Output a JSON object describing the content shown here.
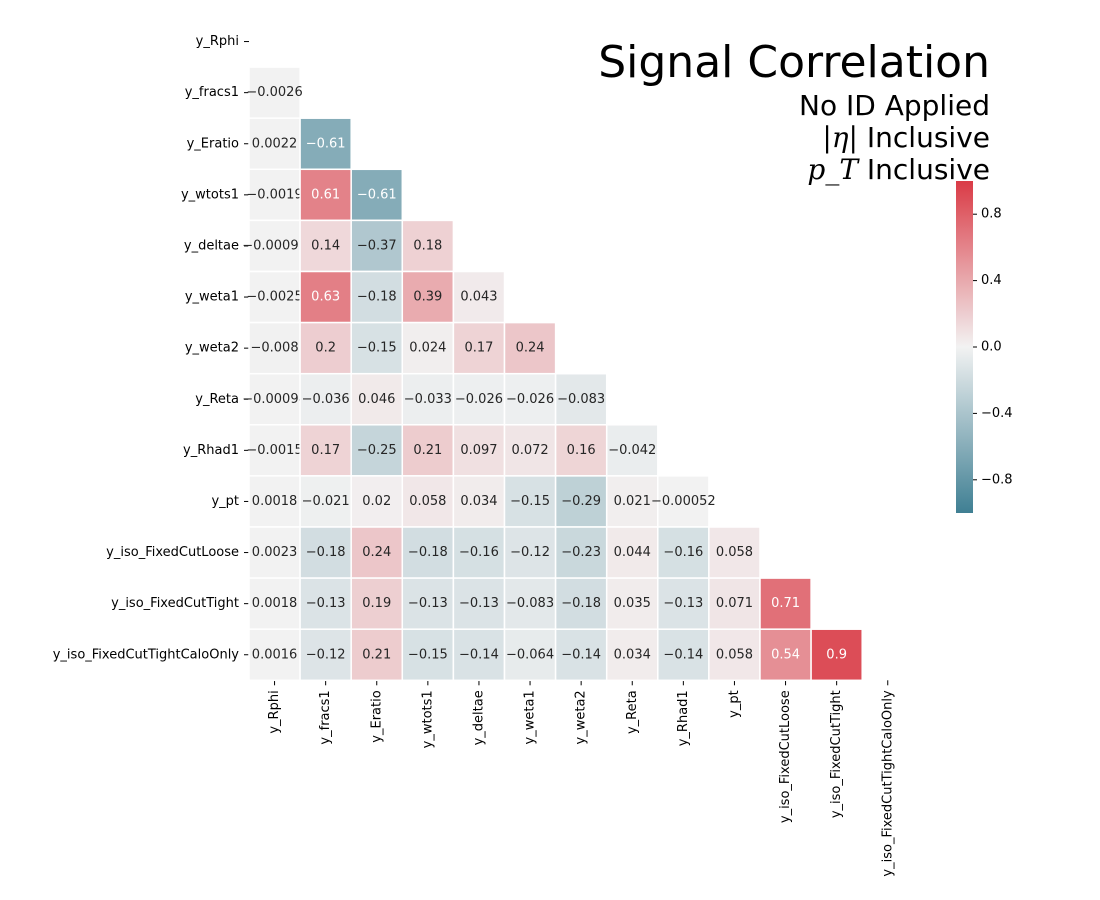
{
  "chart_data": {
    "type": "heatmap",
    "title": "Signal Correlation",
    "subtitle_lines": [
      "No ID Applied",
      "Inclusive",
      "Inclusive"
    ],
    "subtitle_symbols": [
      "|η|",
      "p_T"
    ],
    "row_labels": [
      "y_Rphi",
      "y_fracs1",
      "y_Eratio",
      "y_wtots1",
      "y_deltae",
      "y_weta1",
      "y_weta2",
      "y_Reta",
      "y_Rhad1",
      "y_pt",
      "y_iso_FixedCutLoose",
      "y_iso_FixedCutTight",
      "y_iso_FixedCutTightCaloOnly"
    ],
    "col_labels": [
      "y_Rphi",
      "y_fracs1",
      "y_Eratio",
      "y_wtots1",
      "y_deltae",
      "y_weta1",
      "y_weta2",
      "y_Reta",
      "y_Rhad1",
      "y_pt",
      "y_iso_FixedCutLoose",
      "y_iso_FixedCutTight",
      "y_iso_FixedCutTightCaloOnly"
    ],
    "values": [
      [],
      [
        -0.0026
      ],
      [
        0.0022,
        -0.61
      ],
      [
        -0.0019,
        0.61,
        -0.61
      ],
      [
        -0.00092,
        0.14,
        -0.37,
        0.18
      ],
      [
        -0.0025,
        0.63,
        -0.18,
        0.39,
        0.043
      ],
      [
        -0.008,
        0.2,
        -0.15,
        0.024,
        0.17,
        0.24
      ],
      [
        -0.00094,
        -0.036,
        0.046,
        -0.033,
        -0.026,
        -0.026,
        -0.083
      ],
      [
        -0.0015,
        0.17,
        -0.25,
        0.21,
        0.097,
        0.072,
        0.16,
        -0.042
      ],
      [
        0.0018,
        -0.021,
        0.02,
        0.058,
        0.034,
        -0.15,
        -0.29,
        0.021,
        -0.00052
      ],
      [
        0.0023,
        -0.18,
        0.24,
        -0.18,
        -0.16,
        -0.12,
        -0.23,
        0.044,
        -0.16,
        0.058
      ],
      [
        0.0018,
        -0.13,
        0.19,
        -0.13,
        -0.13,
        -0.083,
        -0.18,
        0.035,
        -0.13,
        0.071,
        0.71
      ],
      [
        0.0016,
        -0.12,
        0.21,
        -0.15,
        -0.14,
        -0.064,
        -0.14,
        0.034,
        -0.14,
        0.058,
        0.54,
        0.9
      ]
    ],
    "colorbar": {
      "vmin": -1,
      "vmax": 1,
      "ticks": [
        0.8,
        0.4,
        0.0,
        -0.4,
        -0.8
      ],
      "tick_labels": [
        "0.8",
        "0.4",
        "0.0",
        "−0.4",
        "−0.8"
      ]
    },
    "colors": {
      "negative": "#3f7f93",
      "center": "#f2f2f2",
      "positive": "#da3b46"
    },
    "lower_triangle_only": true
  }
}
